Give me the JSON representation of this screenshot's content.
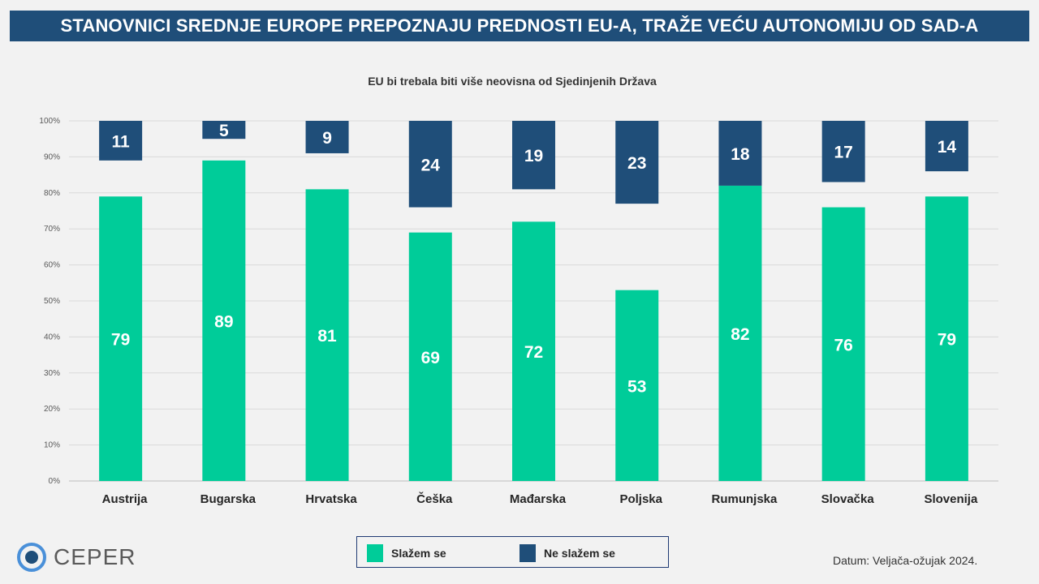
{
  "header": {
    "title": "STANOVNICI SREDNJE EUROPE PREPOZNAJU PREDNOSTI EU-A, TRAŽE VEĆU AUTONOMIJU OD SAD-A"
  },
  "chart_data": {
    "type": "bar",
    "title": "EU bi trebala biti više neovisna od Sjedinjenih Država",
    "categories": [
      "Austrija",
      "Bugarska",
      "Hrvatska",
      "Češka",
      "Mađarska",
      "Poljska",
      "Rumunjska",
      "Slovačka",
      "Slovenija"
    ],
    "series": [
      {
        "name": "Slažem se",
        "values": [
          79,
          89,
          81,
          69,
          72,
          53,
          82,
          76,
          79
        ],
        "color": "#00cc99",
        "anchor": "bottom"
      },
      {
        "name": "Ne slažem se",
        "values": [
          11,
          5,
          9,
          24,
          19,
          23,
          18,
          17,
          14
        ],
        "color": "#1f4e79",
        "anchor": "top"
      }
    ],
    "yticks": [
      "0%",
      "10%",
      "20%",
      "30%",
      "40%",
      "50%",
      "60%",
      "70%",
      "80%",
      "90%",
      "100%"
    ],
    "ylim": [
      0,
      100
    ],
    "grid": true,
    "legend_position": "bottom"
  },
  "footer": {
    "date": "Datum: Veljača-ožujak 2024.",
    "logo_text": "CEPER"
  }
}
